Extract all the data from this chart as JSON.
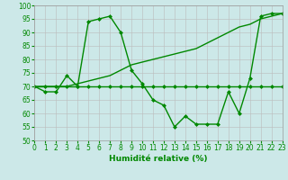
{
  "x": [
    0,
    1,
    2,
    3,
    4,
    5,
    6,
    7,
    8,
    9,
    10,
    11,
    12,
    13,
    14,
    15,
    16,
    17,
    18,
    19,
    20,
    21,
    22,
    23
  ],
  "line1": [
    70,
    68,
    68,
    74,
    70,
    94,
    95,
    96,
    90,
    76,
    71,
    65,
    63,
    55,
    59,
    56,
    56,
    56,
    68,
    60,
    73,
    96,
    97,
    97
  ],
  "line2": [
    70,
    70,
    70,
    70,
    70,
    70,
    70,
    70,
    70,
    70,
    70,
    70,
    70,
    70,
    70,
    70,
    70,
    70,
    70,
    70,
    70,
    70,
    70,
    70
  ],
  "line3": [
    70,
    70,
    70,
    70,
    71,
    72,
    73,
    74,
    76,
    78,
    79,
    80,
    81,
    82,
    83,
    84,
    86,
    88,
    90,
    92,
    93,
    95,
    96,
    97
  ],
  "xlabel": "Humidité relative (%)",
  "ylim": [
    50,
    100
  ],
  "xlim": [
    0,
    23
  ],
  "bg_color": "#cce8e8",
  "grid_color": "#bbbbbb",
  "line_color": "#008800",
  "markersize": 2.5,
  "linewidth": 1.0,
  "yticks": [
    50,
    55,
    60,
    65,
    70,
    75,
    80,
    85,
    90,
    95,
    100
  ],
  "xticks": [
    0,
    1,
    2,
    3,
    4,
    5,
    6,
    7,
    8,
    9,
    10,
    11,
    12,
    13,
    14,
    15,
    16,
    17,
    18,
    19,
    20,
    21,
    22,
    23
  ],
  "tick_fontsize": 5.5,
  "xlabel_fontsize": 6.5
}
